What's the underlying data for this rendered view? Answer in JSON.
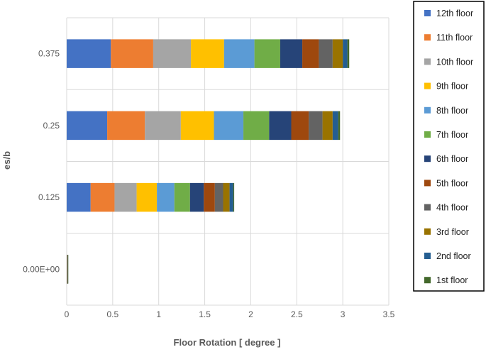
{
  "chart_data": {
    "type": "bar",
    "orientation": "horizontal",
    "stacked": true,
    "title": "",
    "xlabel": "Floor Rotation [ degree ]",
    "ylabel": "es/b",
    "xlim": [
      0,
      3.5
    ],
    "xticks": [
      "0",
      "0.5",
      "1",
      "1.5",
      "2",
      "2.5",
      "3",
      "3.5"
    ],
    "categories": [
      "0.00E+00",
      "0.125",
      "0.25",
      "0.375"
    ],
    "grid": "vertical",
    "legend_position": "right",
    "series": [
      {
        "name": "12th floor",
        "color": "#4472C4",
        "values": [
          0.002,
          0.26,
          0.44,
          0.48
        ]
      },
      {
        "name": "11th floor",
        "color": "#ED7D31",
        "values": [
          0.002,
          0.26,
          0.41,
          0.46
        ]
      },
      {
        "name": "10th floor",
        "color": "#A5A5A5",
        "values": [
          0.002,
          0.24,
          0.39,
          0.41
        ]
      },
      {
        "name": "9th floor",
        "color": "#FFC000",
        "values": [
          0.001,
          0.22,
          0.36,
          0.36
        ]
      },
      {
        "name": "8th floor",
        "color": "#5B9BD5",
        "values": [
          0.001,
          0.19,
          0.32,
          0.33
        ]
      },
      {
        "name": "7th floor",
        "color": "#70AD47",
        "values": [
          0.001,
          0.17,
          0.28,
          0.28
        ]
      },
      {
        "name": "6th floor",
        "color": "#264478",
        "values": [
          0.001,
          0.15,
          0.24,
          0.24
        ]
      },
      {
        "name": "5th floor",
        "color": "#9E480E",
        "values": [
          0.001,
          0.12,
          0.19,
          0.18
        ]
      },
      {
        "name": "4th floor",
        "color": "#636363",
        "values": [
          0.001,
          0.09,
          0.15,
          0.15
        ]
      },
      {
        "name": "3rd floor",
        "color": "#997300",
        "values": [
          0.0005,
          0.07,
          0.11,
          0.11
        ]
      },
      {
        "name": "2nd floor",
        "color": "#255E91",
        "values": [
          0.0005,
          0.04,
          0.06,
          0.05
        ]
      },
      {
        "name": "1st floor",
        "color": "#43682B",
        "values": [
          0.0003,
          0.01,
          0.02,
          0.02
        ]
      }
    ]
  }
}
